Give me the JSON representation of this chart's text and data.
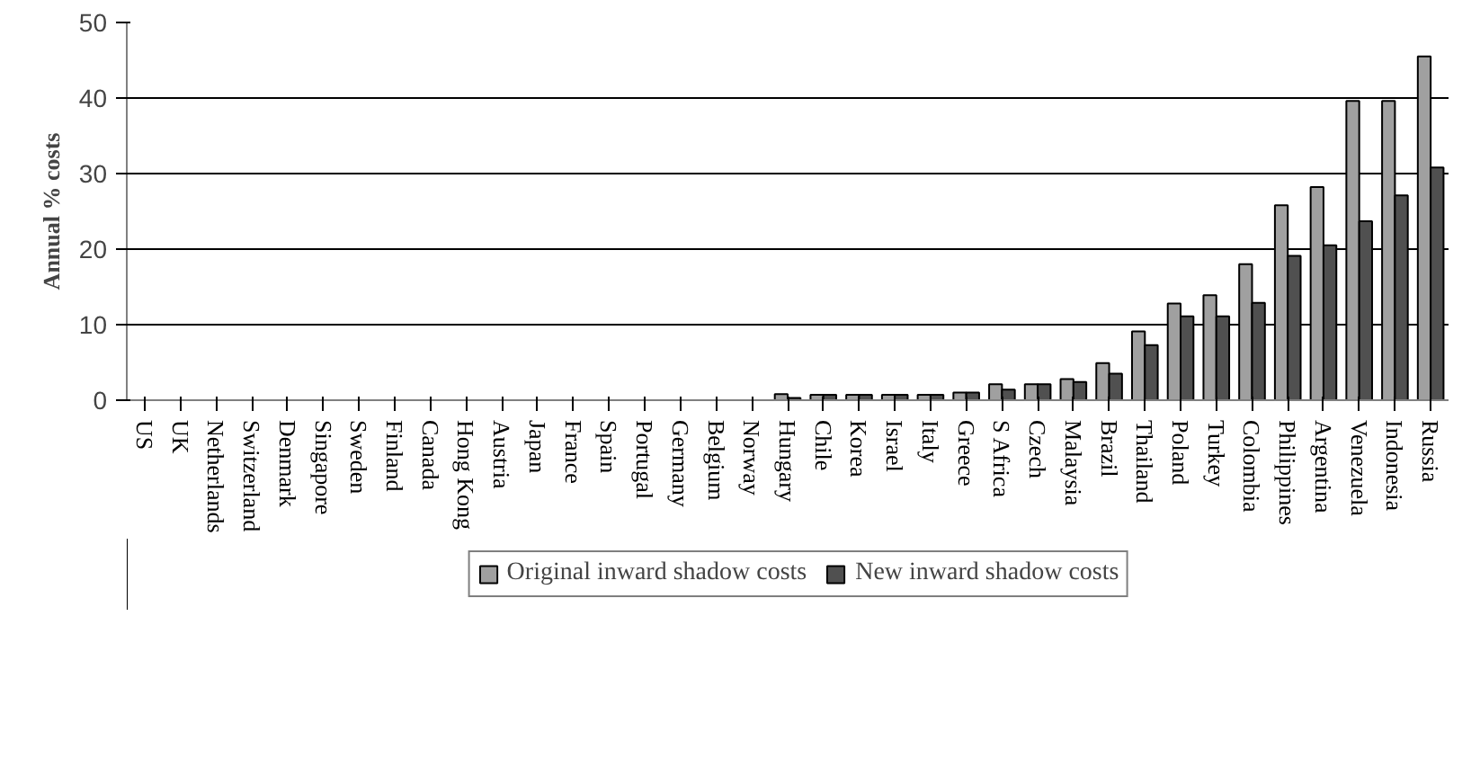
{
  "chart_data": {
    "type": "bar",
    "ylabel": "Annual % costs",
    "categories": [
      "US",
      "UK",
      "Netherlands",
      "Switzerland",
      "Denmark",
      "Singapore",
      "Sweden",
      "Finland",
      "Canada",
      "Hong Kong",
      "Austria",
      "Japan",
      "France",
      "Spain",
      "Portugal",
      "Germany",
      "Belgium",
      "Norway",
      "Hungary",
      "Chile",
      "Korea",
      "Israel",
      "Italy",
      "Greece",
      "S Africa",
      "Czech",
      "Malaysia",
      "Brazil",
      "Thailand",
      "Poland",
      "Turkey",
      "Colombia",
      "Philippines",
      "Argentina",
      "Venezuela",
      "Indonesia",
      "Russia"
    ],
    "series": [
      {
        "name": "Original inward shadow costs",
        "color": "#a0a0a0",
        "values": [
          0,
          0,
          0,
          0,
          0,
          0,
          0,
          0,
          0,
          0,
          0,
          0,
          0,
          0,
          0,
          0,
          0,
          0,
          0.8,
          0.7,
          0.7,
          0.7,
          0.7,
          1.0,
          2.1,
          2.1,
          2.8,
          4.9,
          9.1,
          12.8,
          13.9,
          18.0,
          25.8,
          28.2,
          39.6,
          39.6,
          45.5
        ]
      },
      {
        "name": "New inward shadow costs",
        "color": "#505050",
        "values": [
          0,
          0,
          0,
          0,
          0,
          0,
          0,
          0,
          0,
          0,
          0,
          0,
          0,
          0,
          0,
          0,
          0,
          0,
          0.3,
          0.7,
          0.7,
          0.7,
          0.7,
          1.0,
          1.4,
          2.1,
          2.4,
          3.5,
          7.3,
          11.1,
          11.1,
          12.9,
          19.1,
          20.5,
          23.7,
          27.1,
          30.8
        ]
      }
    ],
    "ylim": [
      0,
      50
    ],
    "yticks": [
      0,
      10,
      20,
      30,
      40,
      50
    ],
    "grid": "y",
    "legend": "bottom"
  }
}
